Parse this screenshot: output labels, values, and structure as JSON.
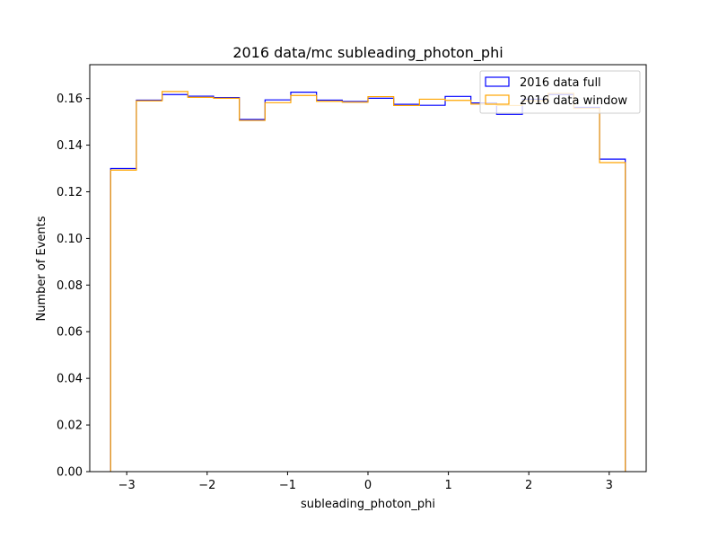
{
  "chart_data": {
    "type": "step-histogram",
    "title": "2016 data/mc subleading_photon_phi",
    "xlabel": "subleading_photon_phi",
    "ylabel": "Number of Events",
    "xlim": [
      -3.46,
      3.46
    ],
    "ylim": [
      0,
      0.1745
    ],
    "x_ticks": [
      -3,
      -2,
      -1,
      0,
      1,
      2,
      3
    ],
    "x_tick_labels": [
      "−3",
      "−2",
      "−1",
      "0",
      "1",
      "2",
      "3"
    ],
    "y_ticks": [
      0,
      0.02,
      0.04,
      0.06,
      0.08,
      0.1,
      0.12,
      0.14,
      0.16
    ],
    "y_tick_labels": [
      "0.00",
      "0.02",
      "0.04",
      "0.06",
      "0.08",
      "0.10",
      "0.12",
      "0.14",
      "0.16"
    ],
    "bin_edges": [
      -3.2,
      -2.88,
      -2.56,
      -2.24,
      -1.92,
      -1.6,
      -1.28,
      -0.96,
      -0.64,
      -0.32,
      0.0,
      0.32,
      0.64,
      0.96,
      1.28,
      1.6,
      1.92,
      2.24,
      2.56,
      2.88,
      3.2
    ],
    "legend_position": "upper right",
    "series": [
      {
        "name": "2016 data full",
        "color": "#0000ff",
        "values": [
          0.13,
          0.1593,
          0.1617,
          0.161,
          0.1604,
          0.151,
          0.1594,
          0.1627,
          0.1593,
          0.1587,
          0.1601,
          0.1575,
          0.1571,
          0.1609,
          0.1581,
          0.1532,
          0.1597,
          0.1617,
          0.1562,
          0.134
        ]
      },
      {
        "name": "2016 data window",
        "color": "#ffa500",
        "values": [
          0.1293,
          0.159,
          0.163,
          0.1605,
          0.1601,
          0.1506,
          0.1582,
          0.1613,
          0.1588,
          0.1584,
          0.1608,
          0.157,
          0.1597,
          0.1592,
          0.1576,
          0.157,
          0.159,
          0.1622,
          0.1558,
          0.1325
        ]
      }
    ]
  }
}
